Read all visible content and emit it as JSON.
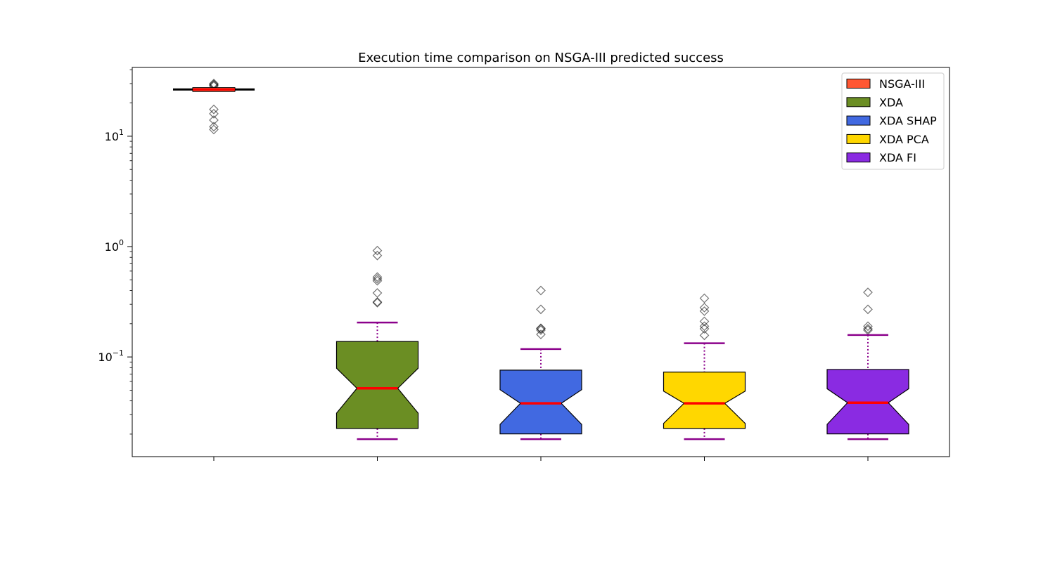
{
  "chart_data": {
    "type": "boxplot",
    "title": "Execution time comparison on NSGA-III predicted success",
    "xlabel": "",
    "ylabel": "",
    "yscale": "log",
    "ylim": [
      0.0125,
      42
    ],
    "y_ticks": [
      {
        "value": 10,
        "base": "10",
        "exp": "1"
      },
      {
        "value": 1,
        "base": "10",
        "exp": "0"
      },
      {
        "value": 0.1,
        "base": "10",
        "exp": "−1"
      }
    ],
    "legend_position": "top-right",
    "median_color": "#ff0000",
    "whisker_color": "#8b008b",
    "series": [
      {
        "name": "NSGA-III",
        "color": "#ff5733",
        "notched": false,
        "whisker_low": 26.0,
        "q1": 26.0,
        "median": 26.5,
        "q3": 27.0,
        "whisker_high": 27.0,
        "outliers": [
          11.5,
          12.2,
          14.0,
          16.0,
          17.5,
          28.5,
          29.0,
          29.5,
          30.0
        ]
      },
      {
        "name": "XDA",
        "color": "#6b8e23",
        "notched": true,
        "whisker_low": 0.018,
        "q1": 0.0225,
        "median": 0.052,
        "q3": 0.138,
        "whisker_high": 0.205,
        "notch_low": 0.031,
        "notch_high": 0.079,
        "outliers": [
          0.31,
          0.315,
          0.38,
          0.49,
          0.51,
          0.53,
          0.83,
          0.92
        ]
      },
      {
        "name": "XDA SHAP",
        "color": "#4169e1",
        "notched": true,
        "whisker_low": 0.018,
        "q1": 0.0201,
        "median": 0.038,
        "q3": 0.076,
        "whisker_high": 0.118,
        "notch_low": 0.0245,
        "notch_high": 0.0505,
        "outliers": [
          0.16,
          0.175,
          0.18,
          0.182,
          0.27,
          0.4
        ]
      },
      {
        "name": "XDA PCA",
        "color": "#ffd700",
        "notched": true,
        "whisker_low": 0.018,
        "q1": 0.0225,
        "median": 0.038,
        "q3": 0.073,
        "whisker_high": 0.133,
        "notch_low": 0.025,
        "notch_high": 0.049,
        "outliers": [
          0.157,
          0.18,
          0.19,
          0.21,
          0.26,
          0.28,
          0.34
        ]
      },
      {
        "name": "XDA FI",
        "color": "#8a2be2",
        "notched": true,
        "whisker_low": 0.018,
        "q1": 0.0201,
        "median": 0.0385,
        "q3": 0.077,
        "whisker_high": 0.158,
        "notch_low": 0.0245,
        "notch_high": 0.0515,
        "outliers": [
          0.175,
          0.18,
          0.19,
          0.27,
          0.385
        ]
      }
    ]
  }
}
